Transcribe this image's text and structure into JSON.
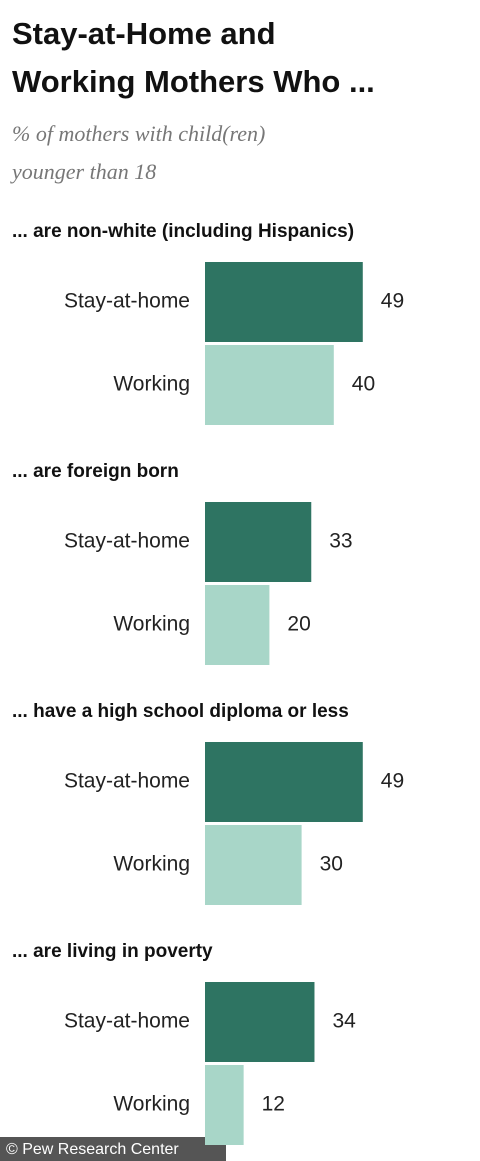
{
  "title": [
    "Stay-at-Home and",
    "Working Mothers Who ..."
  ],
  "subtitle": [
    "% of mothers with child(ren)",
    "younger than 18"
  ],
  "source": "© Pew Research Center",
  "chart_data": [
    {
      "type": "bar",
      "title": "... are non-white (including Hispanics)",
      "categories": [
        "Stay-at-home",
        "Working"
      ],
      "values": [
        49,
        40
      ],
      "colors": [
        "#2e7462",
        "#a8d6c8"
      ]
    },
    {
      "type": "bar",
      "title": "... are foreign born",
      "categories": [
        "Stay-at-home",
        "Working"
      ],
      "values": [
        33,
        20
      ],
      "colors": [
        "#2e7462",
        "#a8d6c8"
      ]
    },
    {
      "type": "bar",
      "title": "... have a high school diploma or less",
      "categories": [
        "Stay-at-home",
        "Working"
      ],
      "values": [
        49,
        30
      ],
      "colors": [
        "#2e7462",
        "#a8d6c8"
      ]
    },
    {
      "type": "bar",
      "title": "... are living in poverty",
      "categories": [
        "Stay-at-home",
        "Working"
      ],
      "values": [
        34,
        12
      ],
      "colors": [
        "#2e7462",
        "#a8d6c8"
      ]
    }
  ]
}
